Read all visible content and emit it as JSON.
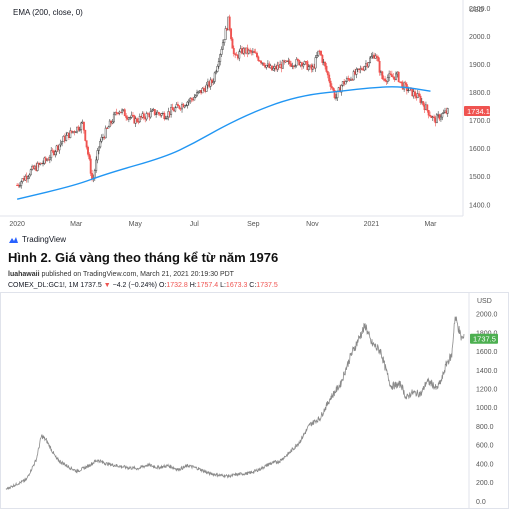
{
  "chart_data": [
    {
      "type": "candlestick",
      "title": "",
      "indicator": "EMA (200, close, 0)",
      "unit_label": "USD",
      "x_ticks": [
        "2020",
        "Mar",
        "May",
        "Jul",
        "Sep",
        "Nov",
        "2021",
        "Mar"
      ],
      "y_ticks": [
        2100,
        2000,
        1900,
        1800,
        1700,
        1600,
        1500,
        1400
      ],
      "ylim": [
        1360,
        2130
      ],
      "last_price": "1734.1",
      "price_close_path": [
        {
          "x": "2020-01",
          "y": 1470
        },
        {
          "x": "2020-01-15",
          "y": 1520
        },
        {
          "x": "2020-02",
          "y": 1560
        },
        {
          "x": "2020-02-20",
          "y": 1640
        },
        {
          "x": "2020-03-08",
          "y": 1690
        },
        {
          "x": "2020-03-18",
          "y": 1480
        },
        {
          "x": "2020-03-25",
          "y": 1620
        },
        {
          "x": "2020-04-14",
          "y": 1740
        },
        {
          "x": "2020-05",
          "y": 1700
        },
        {
          "x": "2020-05-20",
          "y": 1730
        },
        {
          "x": "2020-06",
          "y": 1720
        },
        {
          "x": "2020-06-30",
          "y": 1780
        },
        {
          "x": "2020-07-20",
          "y": 1840
        },
        {
          "x": "2020-08-06",
          "y": 2060
        },
        {
          "x": "2020-08-12",
          "y": 1920
        },
        {
          "x": "2020-08-20",
          "y": 1950
        },
        {
          "x": "2020-09",
          "y": 1940
        },
        {
          "x": "2020-09-20",
          "y": 1880
        },
        {
          "x": "2020-10",
          "y": 1900
        },
        {
          "x": "2020-10-20",
          "y": 1910
        },
        {
          "x": "2020-11",
          "y": 1880
        },
        {
          "x": "2020-11-08",
          "y": 1950
        },
        {
          "x": "2020-11-25",
          "y": 1780
        },
        {
          "x": "2020-12",
          "y": 1830
        },
        {
          "x": "2020-12-20",
          "y": 1880
        },
        {
          "x": "2021-01-05",
          "y": 1940
        },
        {
          "x": "2021-01-12",
          "y": 1850
        },
        {
          "x": "2021-01-28",
          "y": 1860
        },
        {
          "x": "2021-02",
          "y": 1830
        },
        {
          "x": "2021-02-20",
          "y": 1780
        },
        {
          "x": "2021-03-05",
          "y": 1700
        },
        {
          "x": "2021-03-12",
          "y": 1720
        },
        {
          "x": "2021-03-20",
          "y": 1734
        }
      ],
      "ema_path": [
        {
          "x": "2020-01",
          "y": 1420
        },
        {
          "x": "2020-03",
          "y": 1470
        },
        {
          "x": "2020-04",
          "y": 1510
        },
        {
          "x": "2020-06",
          "y": 1570
        },
        {
          "x": "2020-07",
          "y": 1620
        },
        {
          "x": "2020-08",
          "y": 1680
        },
        {
          "x": "2020-09",
          "y": 1730
        },
        {
          "x": "2020-10",
          "y": 1770
        },
        {
          "x": "2020-11",
          "y": 1795
        },
        {
          "x": "2020-12",
          "y": 1805
        },
        {
          "x": "2021-01",
          "y": 1818
        },
        {
          "x": "2021-02",
          "y": 1822
        },
        {
          "x": "2021-03",
          "y": 1805
        }
      ]
    },
    {
      "type": "line",
      "title": "Hình 2. Giá vàng theo tháng kể từ năm 1976",
      "unit_label": "USD",
      "y_ticks": [
        2000,
        1800,
        1600,
        1400,
        1200,
        1000,
        800,
        600,
        400,
        200,
        0
      ],
      "ylim": [
        -50,
        2130
      ],
      "last_price": "1737.5",
      "y_path": [
        {
          "x": 0,
          "y": 130
        },
        {
          "x": 1,
          "y": 180
        },
        {
          "x": 2,
          "y": 230
        },
        {
          "x": 3,
          "y": 450
        },
        {
          "x": 3.5,
          "y": 700
        },
        {
          "x": 4,
          "y": 650
        },
        {
          "x": 5,
          "y": 450
        },
        {
          "x": 6,
          "y": 380
        },
        {
          "x": 7,
          "y": 320
        },
        {
          "x": 8,
          "y": 370
        },
        {
          "x": 9,
          "y": 440
        },
        {
          "x": 10,
          "y": 400
        },
        {
          "x": 11,
          "y": 380
        },
        {
          "x": 12,
          "y": 360
        },
        {
          "x": 13,
          "y": 350
        },
        {
          "x": 14,
          "y": 390
        },
        {
          "x": 15,
          "y": 360
        },
        {
          "x": 16,
          "y": 380
        },
        {
          "x": 17,
          "y": 340
        },
        {
          "x": 18,
          "y": 380
        },
        {
          "x": 19,
          "y": 350
        },
        {
          "x": 20,
          "y": 300
        },
        {
          "x": 21,
          "y": 280
        },
        {
          "x": 22,
          "y": 270
        },
        {
          "x": 23,
          "y": 290
        },
        {
          "x": 24,
          "y": 300
        },
        {
          "x": 25,
          "y": 340
        },
        {
          "x": 26,
          "y": 400
        },
        {
          "x": 27,
          "y": 430
        },
        {
          "x": 28,
          "y": 520
        },
        {
          "x": 29,
          "y": 640
        },
        {
          "x": 30,
          "y": 820
        },
        {
          "x": 31,
          "y": 890
        },
        {
          "x": 32,
          "y": 1100
        },
        {
          "x": 33,
          "y": 1250
        },
        {
          "x": 34,
          "y": 1550
        },
        {
          "x": 35,
          "y": 1780
        },
        {
          "x": 35.5,
          "y": 1880
        },
        {
          "x": 36,
          "y": 1700
        },
        {
          "x": 37,
          "y": 1600
        },
        {
          "x": 37.5,
          "y": 1400
        },
        {
          "x": 38,
          "y": 1230
        },
        {
          "x": 39,
          "y": 1250
        },
        {
          "x": 39.5,
          "y": 1100
        },
        {
          "x": 40,
          "y": 1160
        },
        {
          "x": 41,
          "y": 1150
        },
        {
          "x": 41.5,
          "y": 1280
        },
        {
          "x": 42,
          "y": 1260
        },
        {
          "x": 42.5,
          "y": 1200
        },
        {
          "x": 43,
          "y": 1300
        },
        {
          "x": 43.5,
          "y": 1480
        },
        {
          "x": 44,
          "y": 1560
        },
        {
          "x": 44.3,
          "y": 1970
        },
        {
          "x": 44.6,
          "y": 1880
        },
        {
          "x": 44.9,
          "y": 1750
        },
        {
          "x": 45.2,
          "y": 1737
        }
      ]
    }
  ],
  "branding": {
    "logo_text": "TradingView"
  },
  "publish_info": {
    "author": "luahawaii",
    "rest": " published on TradingView.com, March 21, 2021 20:19:30 PDT"
  },
  "symbol_line": {
    "symbol": "COMEX_DL:GC1!, 1M 1737.5",
    "change_arrow": "▼",
    "change": "−4.2 (−0.24%)",
    "open_label": "O:",
    "open": "1732.8",
    "high_label": "H:",
    "high": "1757.4",
    "low_label": "L:",
    "low": "1673.3",
    "close_label": "C:",
    "close": "1737.5"
  },
  "colors": {
    "ema": "#2196f3",
    "up_candle": "#26a69a",
    "down_candle": "#ef5350",
    "candle_gray": "#444444",
    "line_gray": "#8a8a8a",
    "price_tag_red": "#ef5350",
    "price_tag_green": "#4caf50",
    "grid": "#f0f3fa"
  }
}
